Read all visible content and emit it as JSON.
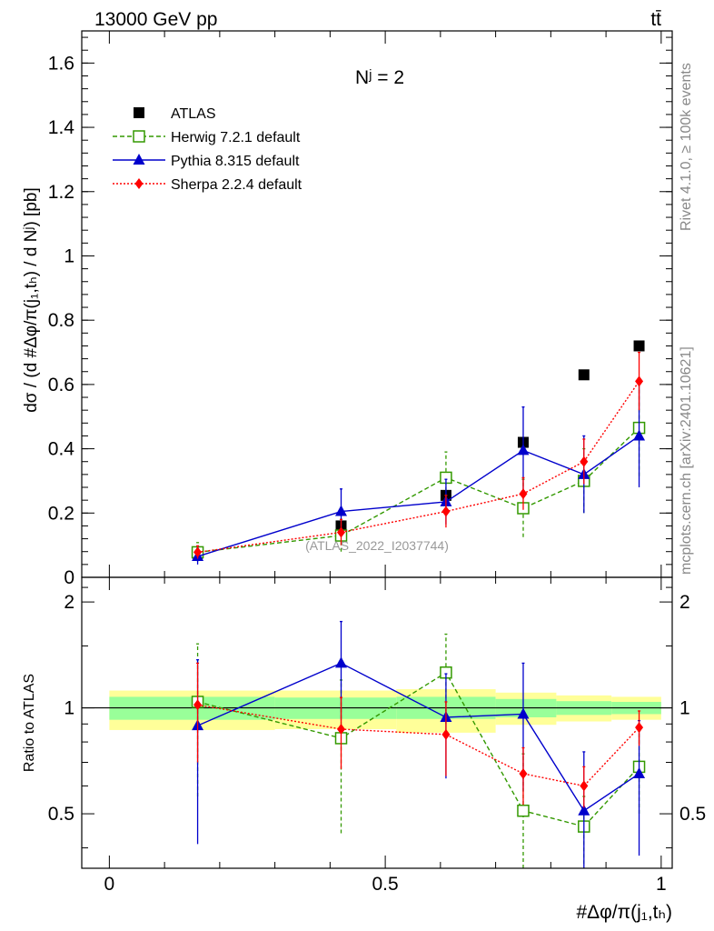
{
  "header": {
    "left": "13000 GeV pp",
    "right": "tt̄"
  },
  "side_labels": {
    "rivet": "Rivet 4.1.0, ≥ 100k events",
    "mcplots": "mcplots.cern.ch [arXiv:2401.10621]"
  },
  "colors": {
    "atlas": "#000000",
    "herwig": "#339900",
    "pythia": "#0000cc",
    "sherpa": "#ff0000",
    "band_inner": "#99ff99",
    "band_outer": "#ffff99"
  },
  "chart_data": [
    {
      "type": "scatter",
      "panel": "main",
      "title": "Nʲ = 2",
      "ylabel": "dσ / (d #Δφ/π(j₁,tₕ) / d Nʲ) [pb]",
      "watermark": "(ATLAS_2022_I2037744)",
      "xlim": [
        -0.05,
        1.02
      ],
      "ylim": [
        0,
        1.7
      ],
      "yticks": [
        0,
        0.2,
        0.4,
        0.6,
        0.8,
        1,
        1.2,
        1.4,
        1.6
      ],
      "ytick_labels": [
        "0",
        "0.2",
        "0.4",
        "0.6",
        "0.8",
        "1",
        "1.2",
        "1.4",
        "1.6"
      ],
      "x": [
        0.16,
        0.42,
        0.61,
        0.75,
        0.86,
        0.96
      ],
      "series": [
        {
          "name": "ATLAS",
          "key": "atlas",
          "marker": "square",
          "values": [
            0.075,
            0.16,
            0.255,
            0.42,
            0.63,
            0.72
          ],
          "err": [
            0,
            0,
            0,
            0,
            0,
            0
          ]
        },
        {
          "name": "Herwig 7.2.1 default",
          "key": "herwig",
          "marker": "open-square",
          "line": "dashed",
          "values": [
            0.078,
            0.13,
            0.31,
            0.215,
            0.3,
            0.465
          ],
          "err": [
            0.03,
            0.05,
            0.08,
            0.09,
            0.1,
            0.15
          ]
        },
        {
          "name": "Pythia 8.315 default",
          "key": "pythia",
          "marker": "triangle",
          "line": "solid",
          "values": [
            0.065,
            0.205,
            0.235,
            0.395,
            0.32,
            0.44
          ],
          "err": [
            0.025,
            0.07,
            0.07,
            0.135,
            0.12,
            0.16
          ]
        },
        {
          "name": "Sherpa 2.2.4 default",
          "key": "sherpa",
          "marker": "diamond",
          "line": "dotted",
          "values": [
            0.078,
            0.14,
            0.205,
            0.26,
            0.36,
            0.61
          ],
          "err": [
            0.02,
            0.04,
            0.05,
            0.05,
            0.07,
            0.09
          ]
        }
      ]
    },
    {
      "type": "scatter",
      "panel": "ratio",
      "ylabel": "Ratio to ATLAS",
      "xlabel": "#Δφ/π(j₁,tₕ)",
      "xlim": [
        -0.05,
        1.02
      ],
      "ylim": [
        0.35,
        2.35
      ],
      "xticks": [
        0,
        0.5,
        1
      ],
      "xtick_labels": [
        "0",
        "0.5",
        "1"
      ],
      "yticks": [
        0.5,
        1,
        2
      ],
      "ytick_labels": [
        "0.5",
        "1",
        "2"
      ],
      "x": [
        0.16,
        0.42,
        0.61,
        0.75,
        0.86,
        0.96
      ],
      "bands": [
        {
          "x0": 0.0,
          "x1": 0.3,
          "inner": [
            0.925,
            1.075
          ],
          "outer": [
            0.865,
            1.12
          ]
        },
        {
          "x0": 0.3,
          "x1": 0.52,
          "inner": [
            0.93,
            1.07
          ],
          "outer": [
            0.87,
            1.12
          ]
        },
        {
          "x0": 0.52,
          "x1": 0.7,
          "inner": [
            0.93,
            1.075
          ],
          "outer": [
            0.85,
            1.13
          ]
        },
        {
          "x0": 0.7,
          "x1": 0.81,
          "inner": [
            0.94,
            1.06
          ],
          "outer": [
            0.895,
            1.105
          ]
        },
        {
          "x0": 0.81,
          "x1": 0.91,
          "inner": [
            0.955,
            1.045
          ],
          "outer": [
            0.915,
            1.085
          ]
        },
        {
          "x0": 0.91,
          "x1": 1.0,
          "inner": [
            0.96,
            1.04
          ],
          "outer": [
            0.925,
            1.075
          ]
        }
      ],
      "series": [
        {
          "name": "Herwig 7.2.1 default",
          "key": "herwig",
          "marker": "open-square",
          "line": "dashed",
          "values": [
            1.04,
            0.82,
            1.26,
            0.51,
            0.46,
            0.68
          ],
          "err": [
            0.48,
            0.38,
            0.36,
            0.23,
            0.1,
            0.18
          ]
        },
        {
          "name": "Pythia 8.315 default",
          "key": "pythia",
          "marker": "triangle",
          "line": "solid",
          "values": [
            0.89,
            1.34,
            0.94,
            0.96,
            0.51,
            0.65
          ],
          "err": [
            0.48,
            0.42,
            0.31,
            0.38,
            0.24,
            0.27
          ]
        },
        {
          "name": "Sherpa 2.2.4 default",
          "key": "sherpa",
          "marker": "diamond",
          "line": "dotted",
          "values": [
            1.02,
            0.87,
            0.84,
            0.65,
            0.6,
            0.88
          ],
          "err": [
            0.32,
            0.2,
            0.2,
            0.12,
            0.08,
            0.1
          ]
        }
      ]
    }
  ]
}
